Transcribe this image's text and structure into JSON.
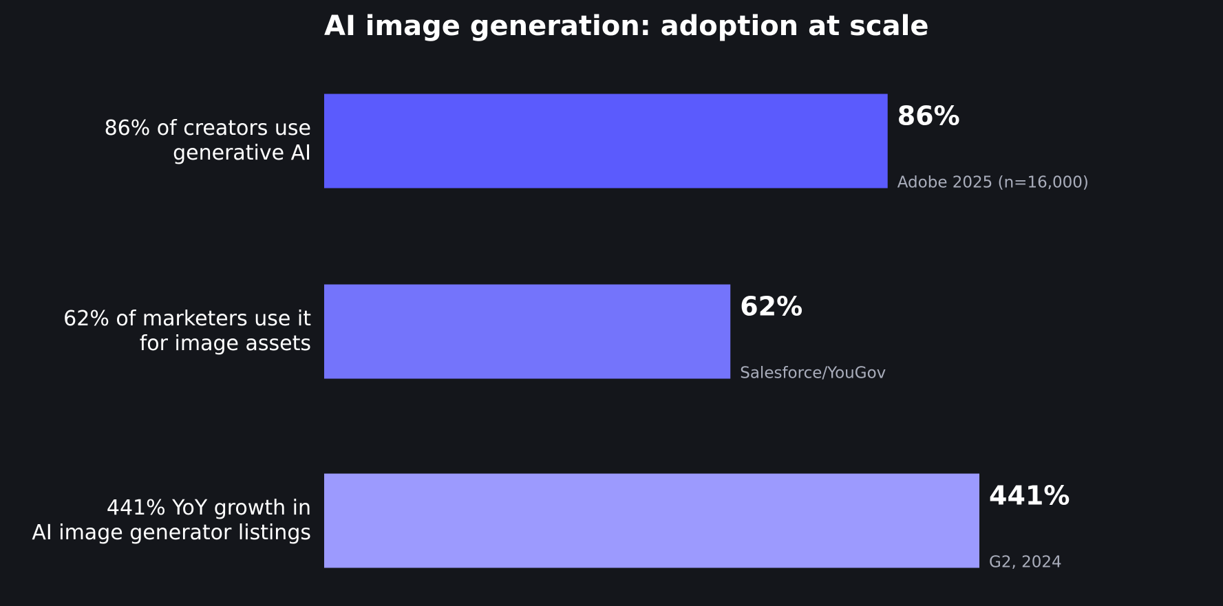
{
  "chart_data": {
    "type": "barh",
    "title": "AI image generation: adoption at scale",
    "categories": [
      [
        "86% of creators use",
        "generative AI"
      ],
      [
        "62% of marketers use it",
        "for image assets"
      ],
      [
        "441% YoY growth in",
        "AI image generator listings"
      ]
    ],
    "values": [
      86,
      62,
      441
    ],
    "value_labels": [
      "86%",
      "62%",
      "441%"
    ],
    "annotations": [
      "Adobe 2025 (n=16,000)",
      "Salesforce/YouGov",
      "G2, 2024"
    ],
    "colors": [
      "#5b5bfd",
      "#7474fb",
      "#9c9afe"
    ],
    "xlim": [
      0,
      100
    ]
  }
}
